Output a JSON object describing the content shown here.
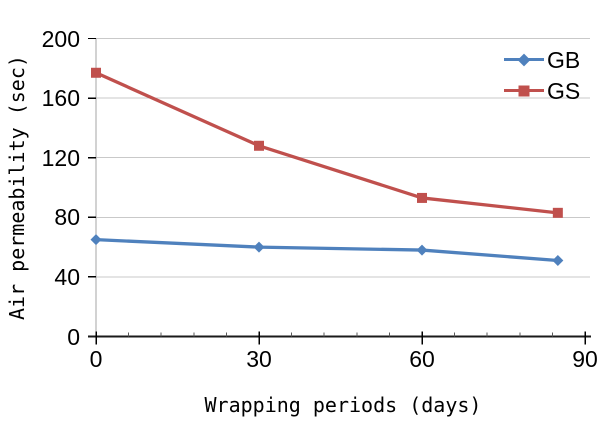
{
  "chart_data": {
    "type": "line",
    "title": "",
    "xlabel": "Wrapping periods (days)",
    "ylabel": "Air permeability (sec)",
    "x": [
      0,
      30,
      60,
      85
    ],
    "series": [
      {
        "name": "GB",
        "color": "#4F81BD",
        "marker": "diamond",
        "values": [
          65,
          60,
          58,
          51
        ]
      },
      {
        "name": "GS",
        "color": "#C0504D",
        "marker": "square",
        "values": [
          177,
          128,
          93,
          83
        ]
      }
    ],
    "xlim": [
      0,
      90
    ],
    "ylim": [
      0,
      200
    ],
    "x_major_ticks": [
      0,
      30,
      60,
      90
    ],
    "x_minor_tick_step": 6,
    "y_ticks": [
      0,
      40,
      80,
      120,
      160,
      200
    ],
    "grid": "horizontal",
    "legend_position": "top-right",
    "colors": {
      "gridline": "#C9C9C9",
      "y_axis_line": "#A6A6A6",
      "x_axis_line": "#1A1A1A",
      "minor_tick": "#595959",
      "tick_label": "#000000",
      "background": "#FFFFFF"
    }
  }
}
